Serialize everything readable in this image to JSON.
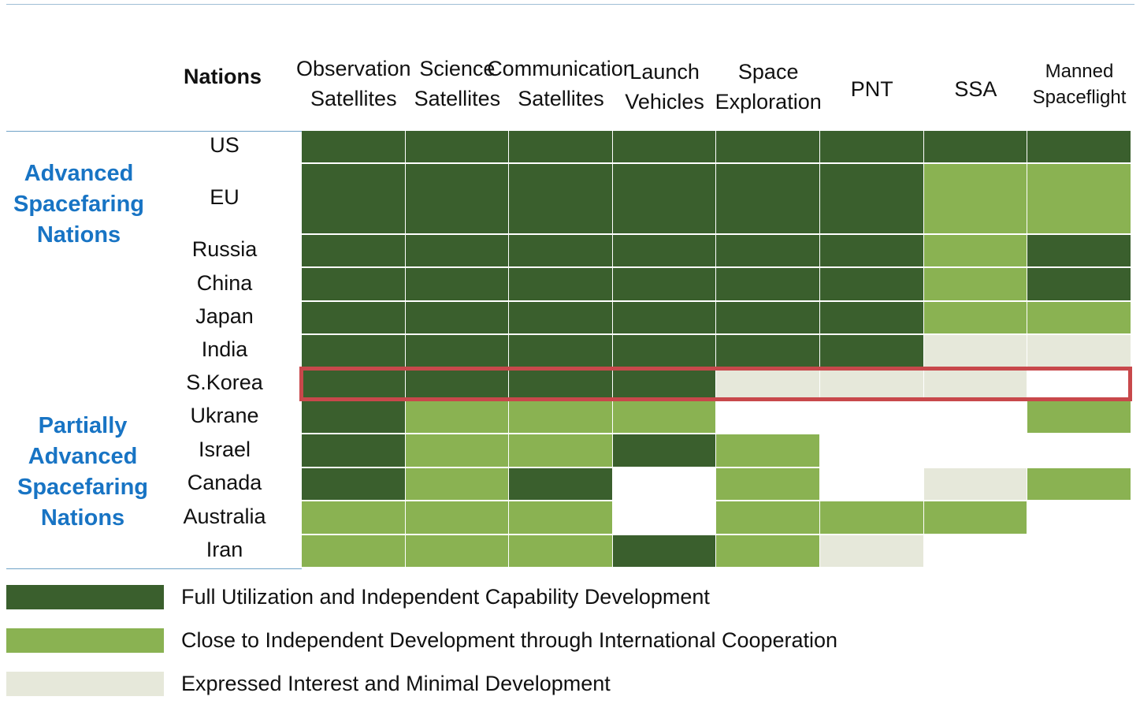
{
  "chart_data": {
    "type": "table",
    "row_header": "Nations",
    "columns": [
      "Observation\nSatellites",
      "Science\nSatellites",
      "Communication\nSatellites",
      "Launch\nVehicles",
      "Space\nExploration",
      "PNT",
      "SSA",
      "Manned\nSpaceflight"
    ],
    "groups": [
      {
        "label": "Advanced\nSpacefaring\nNations",
        "rows": [
          "US",
          "EU",
          "Russia",
          "China",
          "Japan",
          "India"
        ]
      },
      {
        "label": "Partially\nAdvanced\nSpacefaring\nNations",
        "rows": [
          "S.Korea",
          "Ukrane",
          "Israel",
          "Canada",
          "Australia",
          "Iran"
        ]
      }
    ],
    "rows": [
      {
        "nation": "US",
        "levels": [
          3,
          3,
          3,
          3,
          3,
          3,
          3,
          3
        ]
      },
      {
        "nation": "EU",
        "levels": [
          3,
          3,
          3,
          3,
          3,
          3,
          2,
          2
        ]
      },
      {
        "nation": "Russia",
        "levels": [
          3,
          3,
          3,
          3,
          3,
          3,
          2,
          3
        ]
      },
      {
        "nation": "China",
        "levels": [
          3,
          3,
          3,
          3,
          3,
          3,
          2,
          3
        ]
      },
      {
        "nation": "Japan",
        "levels": [
          3,
          3,
          3,
          3,
          3,
          3,
          2,
          2
        ]
      },
      {
        "nation": "India",
        "levels": [
          3,
          3,
          3,
          3,
          3,
          3,
          1,
          1
        ]
      },
      {
        "nation": "S.Korea",
        "levels": [
          3,
          3,
          3,
          3,
          1,
          1,
          1,
          0
        ]
      },
      {
        "nation": "Ukrane",
        "levels": [
          3,
          2,
          2,
          2,
          0,
          0,
          0,
          2
        ]
      },
      {
        "nation": "Israel",
        "levels": [
          3,
          2,
          2,
          3,
          2,
          0,
          0,
          0
        ]
      },
      {
        "nation": "Canada",
        "levels": [
          3,
          2,
          3,
          0,
          2,
          0,
          1,
          2
        ]
      },
      {
        "nation": "Australia",
        "levels": [
          2,
          2,
          2,
          0,
          2,
          2,
          2,
          0
        ]
      },
      {
        "nation": "Iran",
        "levels": [
          2,
          2,
          2,
          3,
          2,
          1,
          0,
          0
        ]
      }
    ],
    "highlighted_row": "S.Korea",
    "legend": [
      {
        "level": 3,
        "label": "Full Utilization and Independent Capability Development",
        "color": "#3a5f2d"
      },
      {
        "level": 2,
        "label": "Close to Independent Development through International Cooperation",
        "color": "#8ab252"
      },
      {
        "level": 1,
        "label": "Expressed Interest and Minimal Development",
        "color": "#e6e8da"
      }
    ],
    "colors": {
      "highlight": "#c8484b",
      "group_label": "#1874c4"
    }
  }
}
